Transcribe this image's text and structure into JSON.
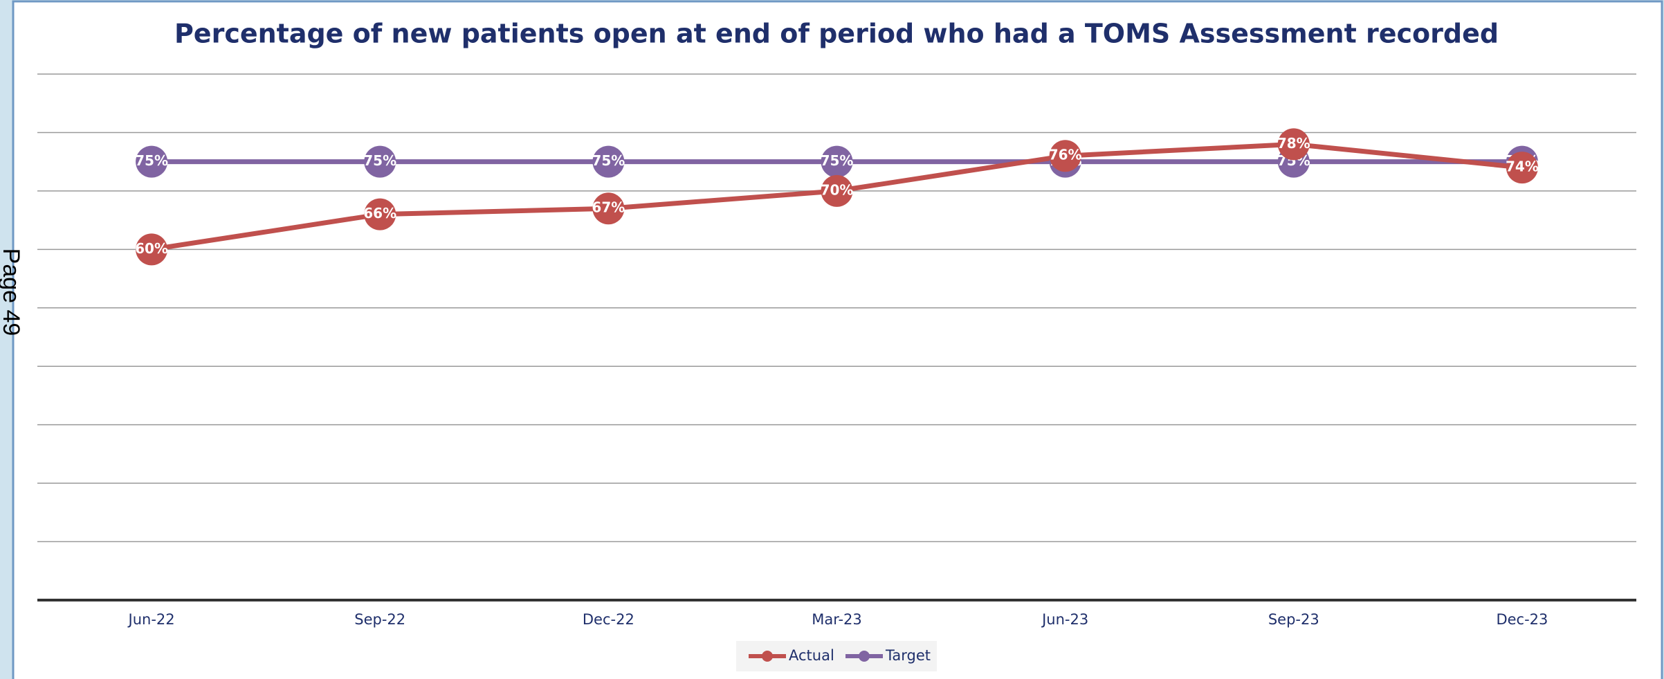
{
  "page_label": "Page 49",
  "chart_data": {
    "type": "line",
    "title": "Percentage of new patients open at end of period who had a TOMS Assessment recorded",
    "categories": [
      "Jun-22",
      "Sep-22",
      "Dec-22",
      "Mar-23",
      "Jun-23",
      "Sep-23",
      "Dec-23"
    ],
    "series": [
      {
        "name": "Actual",
        "color": "#c0504d",
        "values": [
          60,
          66,
          67,
          70,
          76,
          78,
          74
        ],
        "value_labels": [
          "60%",
          "66%",
          "67%",
          "70%",
          "76%",
          "78%",
          "74%"
        ]
      },
      {
        "name": "Target",
        "color": "#8064a2",
        "values": [
          75,
          75,
          75,
          75,
          75,
          75,
          75
        ],
        "value_labels": [
          "75%",
          "75%",
          "75%",
          "75%",
          "75%",
          "75%",
          "75%"
        ]
      }
    ],
    "ylim": [
      0,
      90
    ],
    "yticks": [
      0,
      10,
      20,
      30,
      40,
      50,
      60,
      70,
      80,
      90
    ],
    "grid": true,
    "legend": "bottom"
  }
}
